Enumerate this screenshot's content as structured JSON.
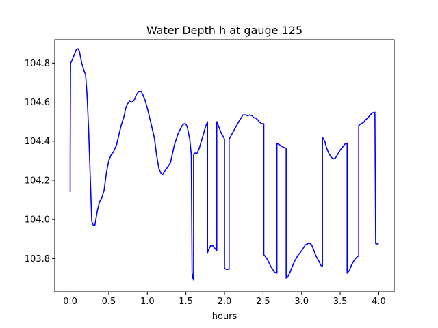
{
  "chart_data": {
    "type": "line",
    "title": "Water Depth h at gauge 125",
    "xlabel": "hours",
    "ylabel": "",
    "xlim": [
      -0.2,
      4.2
    ],
    "ylim": [
      103.63,
      104.92
    ],
    "xticks": [
      0.0,
      0.5,
      1.0,
      1.5,
      2.0,
      2.5,
      3.0,
      3.5,
      4.0
    ],
    "xtick_labels": [
      "0.0",
      "0.5",
      "1.0",
      "1.5",
      "2.0",
      "2.5",
      "3.0",
      "3.5",
      "4.0"
    ],
    "yticks": [
      103.8,
      104.0,
      104.2,
      104.4,
      104.6,
      104.8
    ],
    "ytick_labels": [
      "103.8",
      "104.0",
      "104.2",
      "104.4",
      "104.6",
      "104.8"
    ],
    "grid": false,
    "legend": "none",
    "series": [
      {
        "color": "#0000ff",
        "x": [
          0.0,
          0.0,
          0.005,
          0.005,
          0.02,
          0.05,
          0.08,
          0.1,
          0.12,
          0.15,
          0.18,
          0.2,
          0.22,
          0.24,
          0.26,
          0.28,
          0.3,
          0.32,
          0.35,
          0.38,
          0.41,
          0.44,
          0.47,
          0.5,
          0.53,
          0.56,
          0.6,
          0.63,
          0.66,
          0.7,
          0.72,
          0.74,
          0.75,
          0.77,
          0.8,
          0.83,
          0.86,
          0.89,
          0.92,
          0.94,
          0.97,
          1.0,
          1.03,
          1.06,
          1.09,
          1.12,
          1.15,
          1.18,
          1.2,
          1.22,
          1.25,
          1.3,
          1.35,
          1.4,
          1.45,
          1.48,
          1.5,
          1.52,
          1.55,
          1.57,
          1.58,
          1.59,
          1.6,
          1.6,
          1.62,
          1.64,
          1.67,
          1.7,
          1.73,
          1.75,
          1.77,
          1.78,
          1.78,
          1.8,
          1.82,
          1.85,
          1.88,
          1.9,
          1.9,
          1.93,
          1.96,
          1.99,
          2.0,
          2.0,
          2.02,
          2.06,
          2.06,
          2.1,
          2.15,
          2.2,
          2.24,
          2.28,
          2.3,
          2.33,
          2.36,
          2.38,
          2.4,
          2.43,
          2.45,
          2.48,
          2.5,
          2.51,
          2.51,
          2.55,
          2.6,
          2.65,
          2.68,
          2.68,
          2.72,
          2.76,
          2.8,
          2.8,
          2.82,
          2.85,
          2.9,
          2.95,
          3.0,
          3.05,
          3.1,
          3.13,
          3.16,
          3.19,
          3.22,
          3.25,
          3.27,
          3.27,
          3.3,
          3.32,
          3.35,
          3.38,
          3.41,
          3.44,
          3.47,
          3.5,
          3.53,
          3.56,
          3.59,
          3.59,
          3.62,
          3.65,
          3.68,
          3.71,
          3.74,
          3.74,
          3.77,
          3.8,
          3.83,
          3.86,
          3.89,
          3.92,
          3.95,
          3.96,
          3.96,
          4.0
        ],
        "y": [
          104.14,
          104.3,
          104.8,
          104.8,
          104.81,
          104.84,
          104.87,
          104.874,
          104.86,
          104.8,
          104.76,
          104.74,
          104.63,
          104.45,
          104.22,
          103.99,
          103.97,
          103.97,
          104.04,
          104.09,
          104.11,
          104.15,
          104.24,
          104.3,
          104.33,
          104.345,
          104.38,
          104.43,
          104.48,
          104.53,
          104.57,
          104.59,
          104.595,
          104.605,
          104.6,
          104.61,
          104.64,
          104.655,
          104.655,
          104.64,
          104.61,
          104.57,
          104.52,
          104.47,
          104.42,
          104.33,
          104.26,
          104.235,
          104.23,
          104.245,
          104.26,
          104.29,
          104.38,
          104.44,
          104.48,
          104.49,
          104.488,
          104.47,
          104.41,
          104.33,
          103.73,
          103.7,
          103.69,
          104.33,
          104.34,
          104.335,
          104.36,
          104.4,
          104.44,
          104.47,
          104.49,
          104.5,
          103.83,
          103.85,
          103.865,
          103.865,
          103.85,
          103.84,
          104.5,
          104.47,
          104.44,
          104.42,
          104.41,
          103.75,
          103.745,
          103.745,
          104.41,
          104.44,
          104.475,
          104.51,
          104.535,
          104.535,
          104.53,
          104.535,
          104.53,
          104.52,
          104.52,
          104.51,
          104.5,
          104.49,
          104.49,
          104.49,
          103.82,
          103.8,
          103.76,
          103.73,
          103.725,
          104.39,
          104.38,
          104.37,
          104.365,
          103.7,
          103.705,
          103.73,
          103.78,
          103.815,
          103.84,
          103.87,
          103.88,
          103.87,
          103.84,
          103.81,
          103.79,
          103.765,
          103.76,
          104.42,
          104.4,
          104.37,
          104.34,
          104.32,
          104.31,
          104.315,
          104.335,
          104.355,
          104.37,
          104.385,
          104.39,
          103.725,
          103.74,
          103.77,
          103.79,
          103.805,
          103.815,
          104.48,
          104.49,
          104.495,
          104.51,
          104.52,
          104.535,
          104.545,
          104.548,
          103.88,
          103.876,
          103.874
        ]
      }
    ]
  }
}
